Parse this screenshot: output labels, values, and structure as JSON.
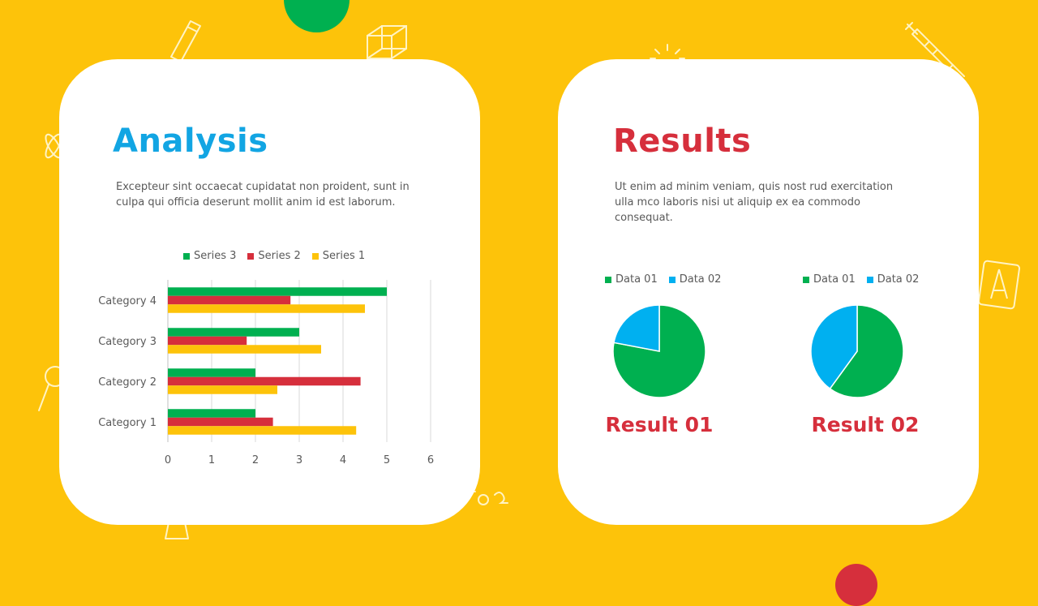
{
  "colors": {
    "background": "#fdc30a",
    "card": "#ffffff",
    "analysis_title": "#12a5e3",
    "results_title": "#d62f3c",
    "green": "#00b050",
    "red": "#d62f3c",
    "yellow": "#fdc30a",
    "blue": "#00b0f0",
    "doodle": "#fff3c4"
  },
  "icons": [
    "pencil-icon",
    "cube-icon",
    "bulb-icon",
    "syringe-icon",
    "compass-icon",
    "magnifier-icon",
    "atom-icon",
    "beaker-icon",
    "formula-icon"
  ],
  "analysis": {
    "title": "Analysis",
    "body": "Excepteur sint occaecat cupidatat non proident, sunt in culpa qui officia deserunt mollit anim id est laborum."
  },
  "results": {
    "title": "Results",
    "body": "Ut enim ad minim veniam, quis nost rud exercitation ulla mco laboris nisi ut aliquip ex ea commodo consequat.",
    "result1_label": "Result 01",
    "result2_label": "Result 02"
  },
  "chart_data": [
    {
      "type": "bar",
      "orientation": "horizontal",
      "categories": [
        "Category 1",
        "Category 2",
        "Category 3",
        "Category 4"
      ],
      "series": [
        {
          "name": "Series 1",
          "color": "#fdc30a",
          "values": [
            4.3,
            2.5,
            3.5,
            4.5
          ]
        },
        {
          "name": "Series 2",
          "color": "#d62f3c",
          "values": [
            2.4,
            4.4,
            1.8,
            2.8
          ]
        },
        {
          "name": "Series 3",
          "color": "#00b050",
          "values": [
            2.0,
            2.0,
            3.0,
            5.0
          ]
        }
      ],
      "legend_order": [
        "Series 3",
        "Series 2",
        "Series 1"
      ],
      "xlim": [
        0,
        6
      ],
      "xticks": [
        "0",
        "1",
        "2",
        "3",
        "4",
        "5",
        "6"
      ],
      "grid": true,
      "legend": "top"
    },
    {
      "type": "pie",
      "labels": [
        "Data 01",
        "Data 02"
      ],
      "values": [
        78,
        22
      ],
      "colors": [
        "#00b050",
        "#00b0f0"
      ],
      "legend": "top"
    },
    {
      "type": "pie",
      "labels": [
        "Data 01",
        "Data 02"
      ],
      "values": [
        60,
        40
      ],
      "colors": [
        "#00b050",
        "#00b0f0"
      ],
      "legend": "top"
    }
  ]
}
